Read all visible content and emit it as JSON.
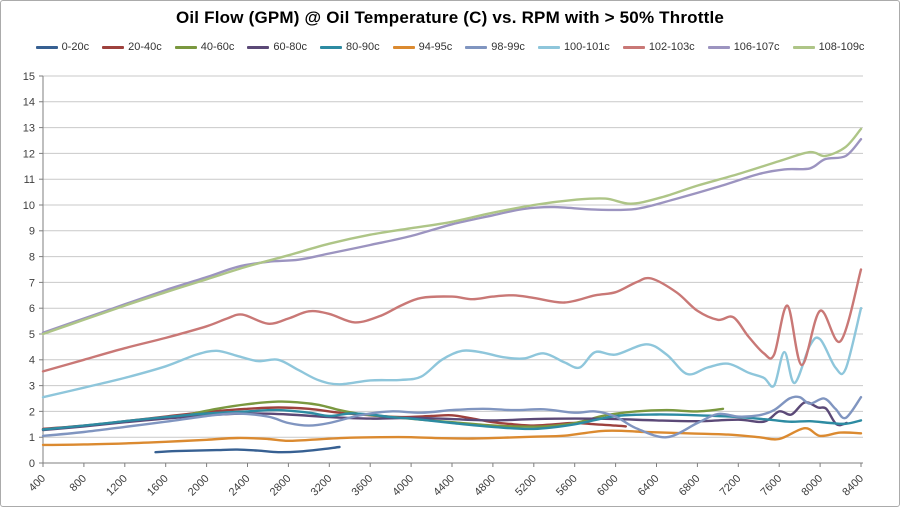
{
  "chart": {
    "background": "#ffffff",
    "border_color": "#ababab",
    "grid_color": "#c9c9c9",
    "axis_color": "#7f7f7f",
    "tick_label_color": "#3f3f3f"
  },
  "chart_data": {
    "type": "line",
    "title": "Oil Flow (GPM) @ Oil Temperature (C) vs. RPM with > 50% Throttle",
    "xlabel": "",
    "ylabel": "",
    "xlim": [
      400,
      8400
    ],
    "ylim": [
      0,
      15
    ],
    "grid": true,
    "legend_position": "top",
    "x_ticks": [
      400,
      800,
      1200,
      1600,
      2000,
      2400,
      2800,
      3200,
      3600,
      4000,
      4400,
      4800,
      5200,
      5600,
      6000,
      6400,
      6800,
      7200,
      7600,
      8000,
      8400
    ],
    "y_ticks": [
      0,
      1,
      2,
      3,
      4,
      5,
      6,
      7,
      8,
      9,
      10,
      11,
      12,
      13,
      14,
      15
    ],
    "series": [
      {
        "name": "0-20c",
        "color": "#376092",
        "points": [
          [
            1500,
            0.42
          ],
          [
            1700,
            0.46
          ],
          [
            1900,
            0.48
          ],
          [
            2100,
            0.5
          ],
          [
            2300,
            0.52
          ],
          [
            2500,
            0.48
          ],
          [
            2700,
            0.42
          ],
          [
            2900,
            0.44
          ],
          [
            3100,
            0.52
          ],
          [
            3300,
            0.62
          ]
        ]
      },
      {
        "name": "20-40c",
        "color": "#9e413d",
        "points": [
          [
            400,
            1.32
          ],
          [
            800,
            1.45
          ],
          [
            1200,
            1.62
          ],
          [
            1600,
            1.8
          ],
          [
            2000,
            1.98
          ],
          [
            2400,
            2.1
          ],
          [
            2700,
            2.15
          ],
          [
            3000,
            2.1
          ],
          [
            3300,
            1.95
          ],
          [
            3600,
            1.85
          ],
          [
            3900,
            1.78
          ],
          [
            4200,
            1.82
          ],
          [
            4400,
            1.85
          ],
          [
            4600,
            1.72
          ],
          [
            4800,
            1.58
          ],
          [
            5000,
            1.5
          ],
          [
            5200,
            1.45
          ],
          [
            5400,
            1.5
          ],
          [
            5600,
            1.55
          ],
          [
            5800,
            1.5
          ],
          [
            6000,
            1.45
          ],
          [
            6100,
            1.42
          ]
        ]
      },
      {
        "name": "40-60c",
        "color": "#7a983f",
        "points": [
          [
            1850,
            1.9
          ],
          [
            2100,
            2.1
          ],
          [
            2400,
            2.28
          ],
          [
            2700,
            2.38
          ],
          [
            2900,
            2.35
          ],
          [
            3100,
            2.25
          ],
          [
            3300,
            2.05
          ],
          [
            3500,
            1.9
          ],
          [
            3700,
            1.82
          ],
          [
            3900,
            1.75
          ],
          [
            4100,
            1.68
          ],
          [
            4400,
            1.58
          ],
          [
            4700,
            1.48
          ],
          [
            5000,
            1.42
          ],
          [
            5300,
            1.42
          ],
          [
            5600,
            1.55
          ],
          [
            5900,
            1.85
          ],
          [
            6200,
            2.0
          ],
          [
            6500,
            2.05
          ],
          [
            6800,
            2.0
          ],
          [
            7050,
            2.1
          ]
        ]
      },
      {
        "name": "60-80c",
        "color": "#5b4977",
        "points": [
          [
            400,
            1.28
          ],
          [
            800,
            1.42
          ],
          [
            1200,
            1.58
          ],
          [
            1600,
            1.72
          ],
          [
            2000,
            1.85
          ],
          [
            2400,
            1.92
          ],
          [
            2800,
            1.88
          ],
          [
            3200,
            1.78
          ],
          [
            3600,
            1.72
          ],
          [
            4000,
            1.75
          ],
          [
            4400,
            1.7
          ],
          [
            4800,
            1.65
          ],
          [
            5200,
            1.7
          ],
          [
            5600,
            1.72
          ],
          [
            6000,
            1.7
          ],
          [
            6400,
            1.65
          ],
          [
            6800,
            1.62
          ],
          [
            7200,
            1.68
          ],
          [
            7450,
            1.6
          ],
          [
            7600,
            2.0
          ],
          [
            7720,
            1.88
          ],
          [
            7850,
            2.35
          ],
          [
            7980,
            2.15
          ],
          [
            8060,
            2.1
          ],
          [
            8160,
            1.5
          ],
          [
            8260,
            1.55
          ]
        ]
      },
      {
        "name": "80-90c",
        "color": "#2d8ba2",
        "points": [
          [
            400,
            1.3
          ],
          [
            800,
            1.45
          ],
          [
            1200,
            1.62
          ],
          [
            1600,
            1.78
          ],
          [
            2000,
            1.92
          ],
          [
            2400,
            2.0
          ],
          [
            2700,
            2.05
          ],
          [
            3000,
            1.95
          ],
          [
            3200,
            1.82
          ],
          [
            3400,
            1.92
          ],
          [
            3600,
            1.88
          ],
          [
            3800,
            1.78
          ],
          [
            4000,
            1.72
          ],
          [
            4400,
            1.55
          ],
          [
            4800,
            1.4
          ],
          [
            5200,
            1.32
          ],
          [
            5600,
            1.5
          ],
          [
            6000,
            1.82
          ],
          [
            6400,
            1.88
          ],
          [
            6800,
            1.85
          ],
          [
            7200,
            1.78
          ],
          [
            7500,
            1.68
          ],
          [
            7700,
            1.6
          ],
          [
            7900,
            1.62
          ],
          [
            8100,
            1.55
          ],
          [
            8250,
            1.52
          ],
          [
            8400,
            1.65
          ]
        ]
      },
      {
        "name": "94-95c",
        "color": "#db8a30",
        "points": [
          [
            400,
            0.7
          ],
          [
            800,
            0.72
          ],
          [
            1200,
            0.76
          ],
          [
            1600,
            0.82
          ],
          [
            2000,
            0.9
          ],
          [
            2300,
            0.97
          ],
          [
            2600,
            0.93
          ],
          [
            2800,
            0.86
          ],
          [
            3100,
            0.92
          ],
          [
            3400,
            0.98
          ],
          [
            3700,
            1.0
          ],
          [
            4000,
            1.0
          ],
          [
            4300,
            0.96
          ],
          [
            4600,
            0.95
          ],
          [
            4900,
            0.98
          ],
          [
            5200,
            1.02
          ],
          [
            5500,
            1.06
          ],
          [
            5900,
            1.25
          ],
          [
            6300,
            1.2
          ],
          [
            6700,
            1.15
          ],
          [
            7100,
            1.1
          ],
          [
            7400,
            1.0
          ],
          [
            7600,
            0.93
          ],
          [
            7850,
            1.35
          ],
          [
            8000,
            1.05
          ],
          [
            8200,
            1.18
          ],
          [
            8400,
            1.15
          ]
        ]
      },
      {
        "name": "98-99c",
        "color": "#8095c0",
        "points": [
          [
            400,
            1.05
          ],
          [
            800,
            1.2
          ],
          [
            1200,
            1.4
          ],
          [
            1600,
            1.6
          ],
          [
            2000,
            1.82
          ],
          [
            2300,
            1.92
          ],
          [
            2600,
            1.8
          ],
          [
            2800,
            1.55
          ],
          [
            3000,
            1.45
          ],
          [
            3200,
            1.55
          ],
          [
            3500,
            1.85
          ],
          [
            3800,
            2.0
          ],
          [
            4100,
            1.95
          ],
          [
            4400,
            2.05
          ],
          [
            4700,
            2.1
          ],
          [
            5000,
            2.05
          ],
          [
            5300,
            2.08
          ],
          [
            5600,
            1.95
          ],
          [
            5800,
            2.0
          ],
          [
            6000,
            1.8
          ],
          [
            6200,
            1.35
          ],
          [
            6500,
            1.0
          ],
          [
            6800,
            1.55
          ],
          [
            7000,
            1.9
          ],
          [
            7200,
            1.8
          ],
          [
            7400,
            1.85
          ],
          [
            7550,
            2.05
          ],
          [
            7700,
            2.5
          ],
          [
            7800,
            2.55
          ],
          [
            7900,
            2.3
          ],
          [
            8040,
            2.5
          ],
          [
            8150,
            2.1
          ],
          [
            8250,
            1.75
          ],
          [
            8400,
            2.55
          ]
        ]
      },
      {
        "name": "100-101c",
        "color": "#8ec6db",
        "points": [
          [
            400,
            2.55
          ],
          [
            800,
            2.92
          ],
          [
            1200,
            3.3
          ],
          [
            1600,
            3.75
          ],
          [
            1900,
            4.2
          ],
          [
            2100,
            4.35
          ],
          [
            2300,
            4.15
          ],
          [
            2500,
            3.95
          ],
          [
            2700,
            4.0
          ],
          [
            2900,
            3.6
          ],
          [
            3100,
            3.2
          ],
          [
            3300,
            3.05
          ],
          [
            3600,
            3.2
          ],
          [
            3900,
            3.22
          ],
          [
            4100,
            3.35
          ],
          [
            4300,
            4.0
          ],
          [
            4500,
            4.35
          ],
          [
            4700,
            4.28
          ],
          [
            4900,
            4.1
          ],
          [
            5100,
            4.05
          ],
          [
            5300,
            4.25
          ],
          [
            5500,
            3.9
          ],
          [
            5650,
            3.7
          ],
          [
            5800,
            4.3
          ],
          [
            6000,
            4.2
          ],
          [
            6300,
            4.6
          ],
          [
            6500,
            4.2
          ],
          [
            6700,
            3.45
          ],
          [
            6900,
            3.7
          ],
          [
            7100,
            3.85
          ],
          [
            7300,
            3.5
          ],
          [
            7450,
            3.3
          ],
          [
            7550,
            3.0
          ],
          [
            7650,
            4.3
          ],
          [
            7750,
            3.1
          ],
          [
            7900,
            4.55
          ],
          [
            8000,
            4.8
          ],
          [
            8150,
            3.7
          ],
          [
            8250,
            3.65
          ],
          [
            8400,
            6.0
          ]
        ]
      },
      {
        "name": "102-103c",
        "color": "#c97876",
        "points": [
          [
            400,
            3.55
          ],
          [
            800,
            4.0
          ],
          [
            1200,
            4.45
          ],
          [
            1600,
            4.85
          ],
          [
            2000,
            5.3
          ],
          [
            2200,
            5.6
          ],
          [
            2350,
            5.75
          ],
          [
            2600,
            5.4
          ],
          [
            2800,
            5.6
          ],
          [
            3000,
            5.88
          ],
          [
            3200,
            5.78
          ],
          [
            3450,
            5.45
          ],
          [
            3700,
            5.7
          ],
          [
            3900,
            6.1
          ],
          [
            4100,
            6.4
          ],
          [
            4400,
            6.45
          ],
          [
            4600,
            6.35
          ],
          [
            4800,
            6.45
          ],
          [
            5000,
            6.5
          ],
          [
            5200,
            6.4
          ],
          [
            5500,
            6.22
          ],
          [
            5800,
            6.5
          ],
          [
            6000,
            6.62
          ],
          [
            6200,
            7.0
          ],
          [
            6350,
            7.15
          ],
          [
            6600,
            6.6
          ],
          [
            6800,
            5.9
          ],
          [
            7000,
            5.55
          ],
          [
            7150,
            5.65
          ],
          [
            7300,
            4.9
          ],
          [
            7450,
            4.25
          ],
          [
            7550,
            4.2
          ],
          [
            7680,
            6.1
          ],
          [
            7820,
            3.8
          ],
          [
            8000,
            5.9
          ],
          [
            8200,
            4.72
          ],
          [
            8400,
            7.5
          ]
        ]
      },
      {
        "name": "106-107c",
        "color": "#9c94c0",
        "points": [
          [
            400,
            5.05
          ],
          [
            800,
            5.6
          ],
          [
            1200,
            6.15
          ],
          [
            1600,
            6.7
          ],
          [
            2000,
            7.2
          ],
          [
            2300,
            7.6
          ],
          [
            2600,
            7.8
          ],
          [
            2900,
            7.88
          ],
          [
            3200,
            8.12
          ],
          [
            3600,
            8.45
          ],
          [
            4000,
            8.8
          ],
          [
            4400,
            9.25
          ],
          [
            4800,
            9.6
          ],
          [
            5100,
            9.85
          ],
          [
            5400,
            9.92
          ],
          [
            5800,
            9.82
          ],
          [
            6200,
            9.85
          ],
          [
            6600,
            10.25
          ],
          [
            7000,
            10.7
          ],
          [
            7400,
            11.2
          ],
          [
            7650,
            11.38
          ],
          [
            7900,
            11.42
          ],
          [
            8050,
            11.78
          ],
          [
            8250,
            11.9
          ],
          [
            8400,
            12.55
          ]
        ]
      },
      {
        "name": "108-109c",
        "color": "#aec587",
        "points": [
          [
            400,
            5.0
          ],
          [
            800,
            5.55
          ],
          [
            1200,
            6.1
          ],
          [
            1600,
            6.62
          ],
          [
            2000,
            7.12
          ],
          [
            2400,
            7.62
          ],
          [
            2800,
            8.05
          ],
          [
            3200,
            8.5
          ],
          [
            3600,
            8.85
          ],
          [
            4000,
            9.1
          ],
          [
            4400,
            9.35
          ],
          [
            4800,
            9.7
          ],
          [
            5200,
            10.0
          ],
          [
            5600,
            10.2
          ],
          [
            5900,
            10.25
          ],
          [
            6150,
            10.05
          ],
          [
            6450,
            10.3
          ],
          [
            6800,
            10.75
          ],
          [
            7200,
            11.2
          ],
          [
            7600,
            11.7
          ],
          [
            7900,
            12.05
          ],
          [
            8050,
            11.9
          ],
          [
            8250,
            12.25
          ],
          [
            8400,
            12.95
          ]
        ]
      }
    ]
  }
}
